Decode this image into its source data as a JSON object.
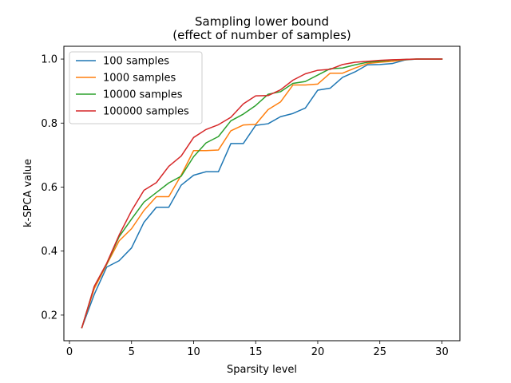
{
  "chart_data": {
    "type": "line",
    "title": "Sampling lower bound",
    "subtitle": "(effect of number of samples)",
    "xlabel": "Sparsity level",
    "ylabel": "k-SPCA value",
    "xlim": [
      -0.45,
      31.45
    ],
    "ylim": [
      0.12,
      1.04
    ],
    "xticks": [
      0,
      5,
      10,
      15,
      20,
      25,
      30
    ],
    "yticks": [
      0.2,
      0.4,
      0.6,
      0.8,
      1.0
    ],
    "xtick_labels": [
      "0",
      "5",
      "10",
      "15",
      "20",
      "25",
      "30"
    ],
    "ytick_labels": [
      "0.2",
      "0.4",
      "0.6",
      "0.8",
      "1.0"
    ],
    "grid": false,
    "legend_position": "top-left",
    "x": [
      1,
      2,
      3,
      4,
      5,
      6,
      7,
      8,
      9,
      10,
      11,
      12,
      13,
      14,
      15,
      16,
      17,
      18,
      19,
      20,
      21,
      22,
      23,
      24,
      25,
      26,
      27,
      28,
      29,
      30
    ],
    "series": [
      {
        "name": "100 samples",
        "color": "#1f77b4",
        "values": [
          0.161,
          0.265,
          0.35,
          0.37,
          0.41,
          0.49,
          0.537,
          0.537,
          0.606,
          0.637,
          0.648,
          0.648,
          0.736,
          0.736,
          0.793,
          0.798,
          0.82,
          0.83,
          0.847,
          0.903,
          0.909,
          0.943,
          0.96,
          0.982,
          0.983,
          0.986,
          0.997,
          1.0,
          1.0,
          1.0
        ]
      },
      {
        "name": "1000 samples",
        "color": "#ff7f0e",
        "values": [
          0.161,
          0.283,
          0.358,
          0.432,
          0.47,
          0.527,
          0.57,
          0.57,
          0.637,
          0.714,
          0.714,
          0.716,
          0.776,
          0.794,
          0.796,
          0.842,
          0.866,
          0.919,
          0.919,
          0.922,
          0.956,
          0.956,
          0.972,
          0.986,
          0.99,
          0.993,
          0.998,
          1.0,
          1.0,
          1.0
        ]
      },
      {
        "name": "10000 samples",
        "color": "#2ca02c",
        "values": [
          0.161,
          0.29,
          0.36,
          0.445,
          0.5,
          0.553,
          0.583,
          0.613,
          0.634,
          0.695,
          0.738,
          0.758,
          0.807,
          0.828,
          0.855,
          0.89,
          0.898,
          0.924,
          0.93,
          0.95,
          0.97,
          0.972,
          0.982,
          0.99,
          0.993,
          0.997,
          0.999,
          1.0,
          1.0,
          1.0
        ]
      },
      {
        "name": "100000 samples",
        "color": "#d62728",
        "values": [
          0.161,
          0.29,
          0.362,
          0.45,
          0.526,
          0.59,
          0.614,
          0.665,
          0.697,
          0.755,
          0.78,
          0.795,
          0.818,
          0.86,
          0.885,
          0.886,
          0.904,
          0.934,
          0.954,
          0.965,
          0.968,
          0.983,
          0.99,
          0.993,
          0.996,
          0.998,
          0.999,
          1.0,
          1.0,
          1.0
        ]
      }
    ]
  }
}
